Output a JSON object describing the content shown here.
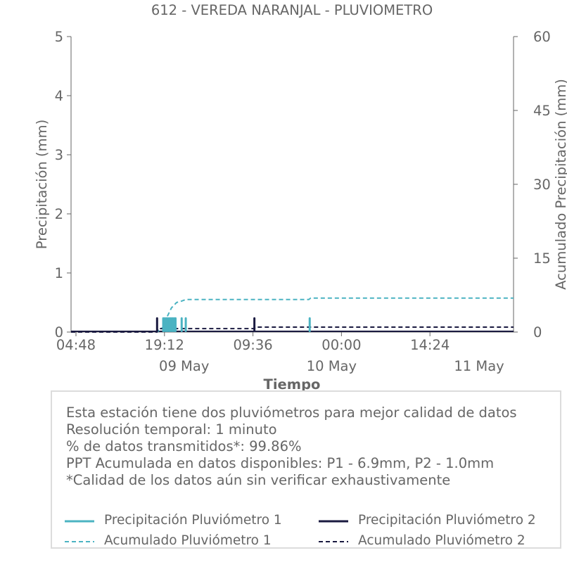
{
  "colors": {
    "p1": "#4bb3c2",
    "p2": "#1a1a40",
    "text": "#666666",
    "axis": "#666666"
  },
  "chart_data": {
    "type": "bar",
    "title": "612 - VEREDA NARANJAL - PLUVIOMETRO",
    "xlabel": "Tiempo",
    "ylabel": "Precipitación (mm)",
    "y2label": "Acumulado Precipitación (mm)",
    "ylim": [
      0,
      5
    ],
    "y2lim": [
      0,
      60
    ],
    "yticks": [
      "0",
      "1",
      "2",
      "3",
      "4",
      "5"
    ],
    "y2ticks": [
      "0",
      "15",
      "30",
      "45",
      "60"
    ],
    "x_time_ticks": [
      "04:48",
      "19:12",
      "09:36",
      "00:00",
      "14:24"
    ],
    "x_date_ticks": [
      "09 May",
      "10 May",
      "11 May"
    ],
    "xlim": [
      "2022-05-08 04:00",
      "2022-05-11 04:00"
    ],
    "series": [
      {
        "name": "Precipitación Pluviómetro 1",
        "kind": "bar",
        "points": [
          [
            "2022-05-08 19:00",
            0.25
          ],
          [
            "2022-05-08 19:15",
            0.25
          ],
          [
            "2022-05-08 19:30",
            0.25
          ],
          [
            "2022-05-08 19:45",
            0.25
          ],
          [
            "2022-05-08 20:00",
            0.25
          ],
          [
            "2022-05-08 20:15",
            0.25
          ],
          [
            "2022-05-08 20:30",
            0.25
          ],
          [
            "2022-05-08 20:45",
            0.25
          ],
          [
            "2022-05-08 21:00",
            0.25
          ],
          [
            "2022-05-08 22:00",
            0.25
          ],
          [
            "2022-05-08 22:40",
            0.25
          ],
          [
            "2022-05-09 18:50",
            0.25
          ]
        ]
      },
      {
        "name": "Precipitación Pluviómetro 2",
        "kind": "bar",
        "points": [
          [
            "2022-05-08 18:00",
            0.25
          ],
          [
            "2022-05-09 09:50",
            0.25
          ]
        ]
      },
      {
        "name": "Acumulado Pluviómetro 1",
        "kind": "line",
        "axis": "y2",
        "points": [
          [
            "2022-05-08 04:00",
            0
          ],
          [
            "2022-05-08 18:00",
            0
          ],
          [
            "2022-05-08 19:00",
            1
          ],
          [
            "2022-05-08 19:40",
            3.2
          ],
          [
            "2022-05-08 20:20",
            4.9
          ],
          [
            "2022-05-08 21:10",
            6.0
          ],
          [
            "2022-05-08 22:00",
            6.3
          ],
          [
            "2022-05-08 22:40",
            6.6
          ],
          [
            "2022-05-09 18:40",
            6.6
          ],
          [
            "2022-05-09 19:00",
            6.9
          ],
          [
            "2022-05-11 04:00",
            6.9
          ]
        ]
      },
      {
        "name": "Acumulado Pluviómetro 2",
        "kind": "line",
        "axis": "y2",
        "points": [
          [
            "2022-05-08 04:00",
            0
          ],
          [
            "2022-05-08 18:00",
            0
          ],
          [
            "2022-05-08 18:10",
            0.7
          ],
          [
            "2022-05-09 09:50",
            0.7
          ],
          [
            "2022-05-09 10:00",
            1.0
          ],
          [
            "2022-05-11 04:00",
            1.0
          ]
        ]
      }
    ],
    "legend_placement": "bottom"
  },
  "info": {
    "lines": [
      "Esta estación tiene dos pluviómetros para mejor calidad de datos",
      "Resolución temporal: 1 minuto",
      "% de datos transmitidos*: 99.86%",
      "PPT Acumulada en datos disponibles: P1 - 6.9mm, P2 - 1.0mm",
      "*Calidad de los datos aún sin verificar exhaustivamente"
    ]
  },
  "legend": {
    "items": [
      {
        "label": "Precipitación Pluviómetro 1",
        "color": "#4bb3c2",
        "dash": "none"
      },
      {
        "label": "Precipitación Pluviómetro 2",
        "color": "#1a1a40",
        "dash": "none"
      },
      {
        "label": "Acumulado Pluviómetro 1",
        "color": "#4bb3c2",
        "dash": "6,4"
      },
      {
        "label": "Acumulado Pluviómetro 2",
        "color": "#1a1a40",
        "dash": "6,4"
      }
    ]
  }
}
